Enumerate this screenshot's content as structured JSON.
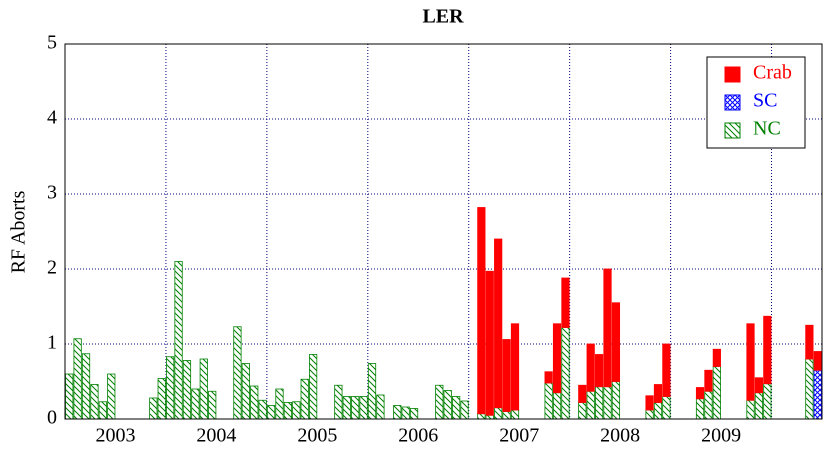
{
  "chart_data": {
    "type": "bar",
    "stacked": true,
    "title": "LER",
    "y_label": "RF Aborts",
    "ylim": [
      0,
      5
    ],
    "yticks": [
      0,
      1,
      2,
      3,
      4,
      5
    ],
    "grid": true,
    "legend": "top-right",
    "year_labels": [
      2003,
      2004,
      2005,
      2006,
      2007,
      2008,
      2009
    ],
    "categories": [
      null,
      null,
      null,
      null,
      null,
      null,
      null,
      null,
      null,
      null,
      null,
      null,
      null,
      null,
      null,
      null,
      null,
      null,
      null,
      null,
      null,
      null,
      null,
      null,
      null,
      null,
      null,
      null,
      null,
      null,
      null,
      null,
      null,
      null,
      null,
      null,
      null,
      null,
      null,
      null,
      null,
      null,
      null,
      null,
      null,
      null,
      null,
      null,
      null,
      null,
      null,
      null,
      null,
      null,
      null,
      null,
      null,
      null,
      null,
      null,
      null,
      null,
      null,
      null,
      null,
      null,
      null,
      null,
      null,
      null,
      null,
      null,
      null,
      null,
      null,
      null,
      null,
      null,
      null,
      null,
      null,
      null,
      null,
      null,
      null,
      null,
      null,
      null,
      null,
      null
    ],
    "series": [
      {
        "name": "NC",
        "color": "#008000",
        "pattern": "hatch",
        "values": [
          0.6,
          1.07,
          0.87,
          0.46,
          0.23,
          0.6,
          null,
          null,
          null,
          null,
          0.28,
          0.54,
          0.83,
          2.1,
          0.78,
          0.4,
          0.8,
          0.37,
          null,
          null,
          1.23,
          0.74,
          0.44,
          0.25,
          0.18,
          0.4,
          0.22,
          0.23,
          0.53,
          0.86,
          null,
          null,
          0.45,
          0.3,
          0.3,
          0.3,
          0.74,
          0.32,
          null,
          0.18,
          0.16,
          0.14,
          null,
          null,
          0.45,
          0.38,
          0.3,
          0.24,
          null,
          0.07,
          0.05,
          0.15,
          0.1,
          0.12,
          null,
          null,
          null,
          0.48,
          0.35,
          1.22,
          null,
          0.22,
          0.37,
          0.43,
          0.43,
          0.5,
          null,
          null,
          null,
          0.12,
          0.22,
          0.3,
          null,
          null,
          null,
          0.27,
          0.37,
          0.7,
          null,
          null,
          null,
          0.25,
          0.35,
          0.47,
          null,
          null,
          null,
          null,
          0.8,
          null
        ]
      },
      {
        "name": "SC",
        "color": "#0000ff",
        "pattern": "cross",
        "values": [
          null,
          null,
          null,
          null,
          null,
          null,
          null,
          null,
          null,
          null,
          null,
          null,
          null,
          null,
          null,
          null,
          null,
          null,
          null,
          null,
          null,
          null,
          null,
          null,
          null,
          null,
          null,
          null,
          null,
          null,
          null,
          null,
          null,
          null,
          null,
          null,
          null,
          null,
          null,
          null,
          null,
          null,
          null,
          null,
          null,
          null,
          null,
          null,
          null,
          null,
          null,
          null,
          null,
          null,
          null,
          null,
          null,
          null,
          null,
          null,
          null,
          null,
          null,
          null,
          null,
          null,
          null,
          null,
          null,
          null,
          null,
          null,
          null,
          null,
          null,
          null,
          null,
          null,
          null,
          null,
          null,
          null,
          null,
          null,
          null,
          null,
          null,
          null,
          null,
          0.65
        ]
      },
      {
        "name": "Crab",
        "color": "#ff0000",
        "pattern": "solid",
        "values": [
          null,
          null,
          null,
          null,
          null,
          null,
          null,
          null,
          null,
          null,
          null,
          null,
          null,
          null,
          null,
          null,
          null,
          null,
          null,
          null,
          null,
          null,
          null,
          null,
          null,
          null,
          null,
          null,
          null,
          null,
          null,
          null,
          null,
          null,
          null,
          null,
          null,
          null,
          null,
          null,
          null,
          null,
          null,
          null,
          null,
          null,
          null,
          null,
          null,
          2.75,
          1.92,
          2.25,
          0.96,
          1.15,
          null,
          null,
          null,
          0.15,
          0.92,
          0.66,
          null,
          0.23,
          0.63,
          0.43,
          1.57,
          1.05,
          null,
          null,
          null,
          0.19,
          0.24,
          0.7,
          null,
          null,
          null,
          0.15,
          0.28,
          0.23,
          null,
          null,
          null,
          1.02,
          0.2,
          0.9,
          null,
          null,
          null,
          null,
          0.45,
          0.25
        ]
      }
    ]
  }
}
